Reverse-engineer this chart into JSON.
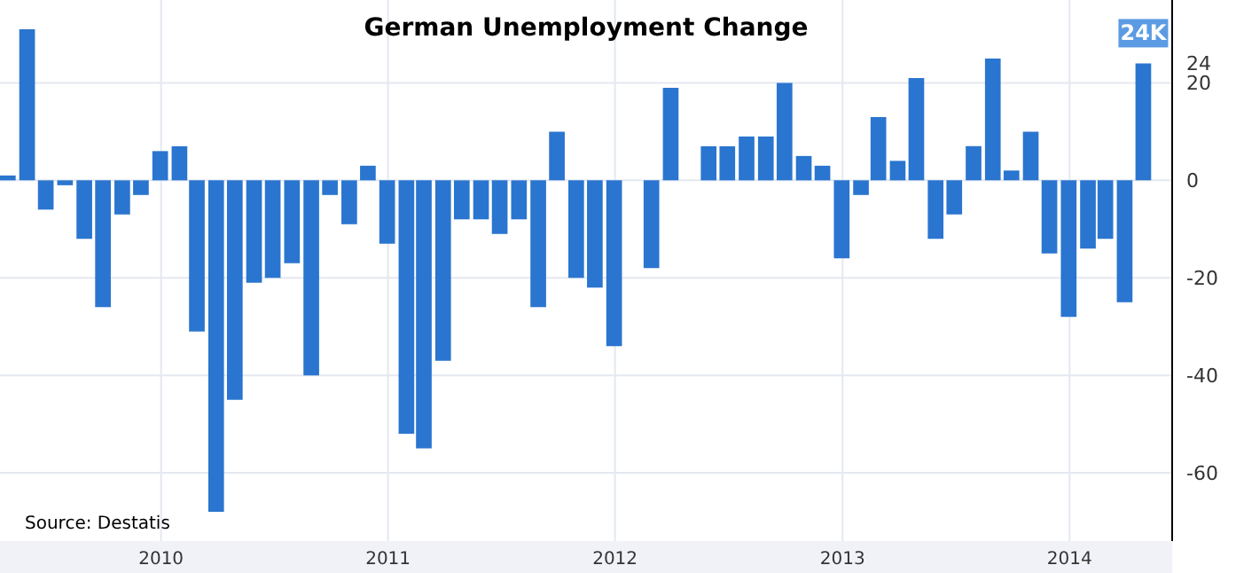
{
  "chart_data": {
    "type": "bar",
    "title": "German Unemployment Change",
    "x": [
      "2009-05",
      "2009-06",
      "2009-07",
      "2009-08",
      "2009-09",
      "2009-10",
      "2009-11",
      "2009-12",
      "2010-01",
      "2010-02",
      "2010-03",
      "2010-04",
      "2010-05",
      "2010-06",
      "2010-07",
      "2010-08",
      "2010-09",
      "2010-10",
      "2010-11",
      "2010-12",
      "2011-01",
      "2011-02",
      "2011-03",
      "2011-04",
      "2011-05",
      "2011-06",
      "2011-07",
      "2011-08",
      "2011-09",
      "2011-10",
      "2011-11",
      "2011-12",
      "2012-01",
      "2012-02",
      "2012-03",
      "2012-04",
      "2012-05",
      "2012-06",
      "2012-07",
      "2012-08",
      "2012-09",
      "2012-10",
      "2012-11",
      "2012-12",
      "2013-01",
      "2013-02",
      "2013-03",
      "2013-04",
      "2013-05",
      "2013-06",
      "2013-07",
      "2013-08",
      "2013-09",
      "2013-10",
      "2013-11",
      "2013-12",
      "2014-01",
      "2014-02",
      "2014-03",
      "2014-04",
      "2014-05"
    ],
    "values": [
      1,
      31,
      -6,
      -1,
      -12,
      -26,
      -7,
      -3,
      6,
      7,
      -31,
      -68,
      -45,
      -21,
      -20,
      -17,
      -40,
      -3,
      -9,
      3,
      -13,
      -52,
      -55,
      -37,
      -8,
      -8,
      -11,
      -8,
      -26,
      10,
      -20,
      -22,
      -34,
      0,
      -18,
      19,
      0,
      7,
      7,
      9,
      9,
      20,
      5,
      3,
      -16,
      -3,
      13,
      4,
      21,
      -12,
      -7,
      7,
      25,
      2,
      10,
      -15,
      -28,
      -14,
      -12,
      -25,
      24
    ],
    "value_labels": [
      null,
      null,
      null,
      null,
      null,
      null,
      null,
      null,
      null,
      null,
      null,
      null,
      null,
      null,
      null,
      null,
      null,
      null,
      null,
      null,
      null,
      null,
      null,
      null,
      null,
      null,
      null,
      null,
      null,
      null,
      null,
      null,
      null,
      null,
      null,
      null,
      null,
      null,
      null,
      null,
      null,
      null,
      null,
      null,
      null,
      null,
      null,
      null,
      null,
      null,
      null,
      null,
      null,
      null,
      null,
      null,
      null,
      null,
      null,
      null,
      "24K"
    ],
    "color": "#2a75cf",
    "xlim": [
      "2009-04-17",
      "2014-06-15"
    ],
    "xticks": [
      "2010",
      "2011",
      "2012",
      "2013",
      "2014"
    ],
    "ylim": [
      -74,
      37
    ],
    "yticks": [
      -60,
      -40,
      -20,
      0,
      20,
      {
        "value": 24,
        "label": "24"
      }
    ],
    "grid": true,
    "annotations": [
      "Source: Destatis"
    ]
  }
}
